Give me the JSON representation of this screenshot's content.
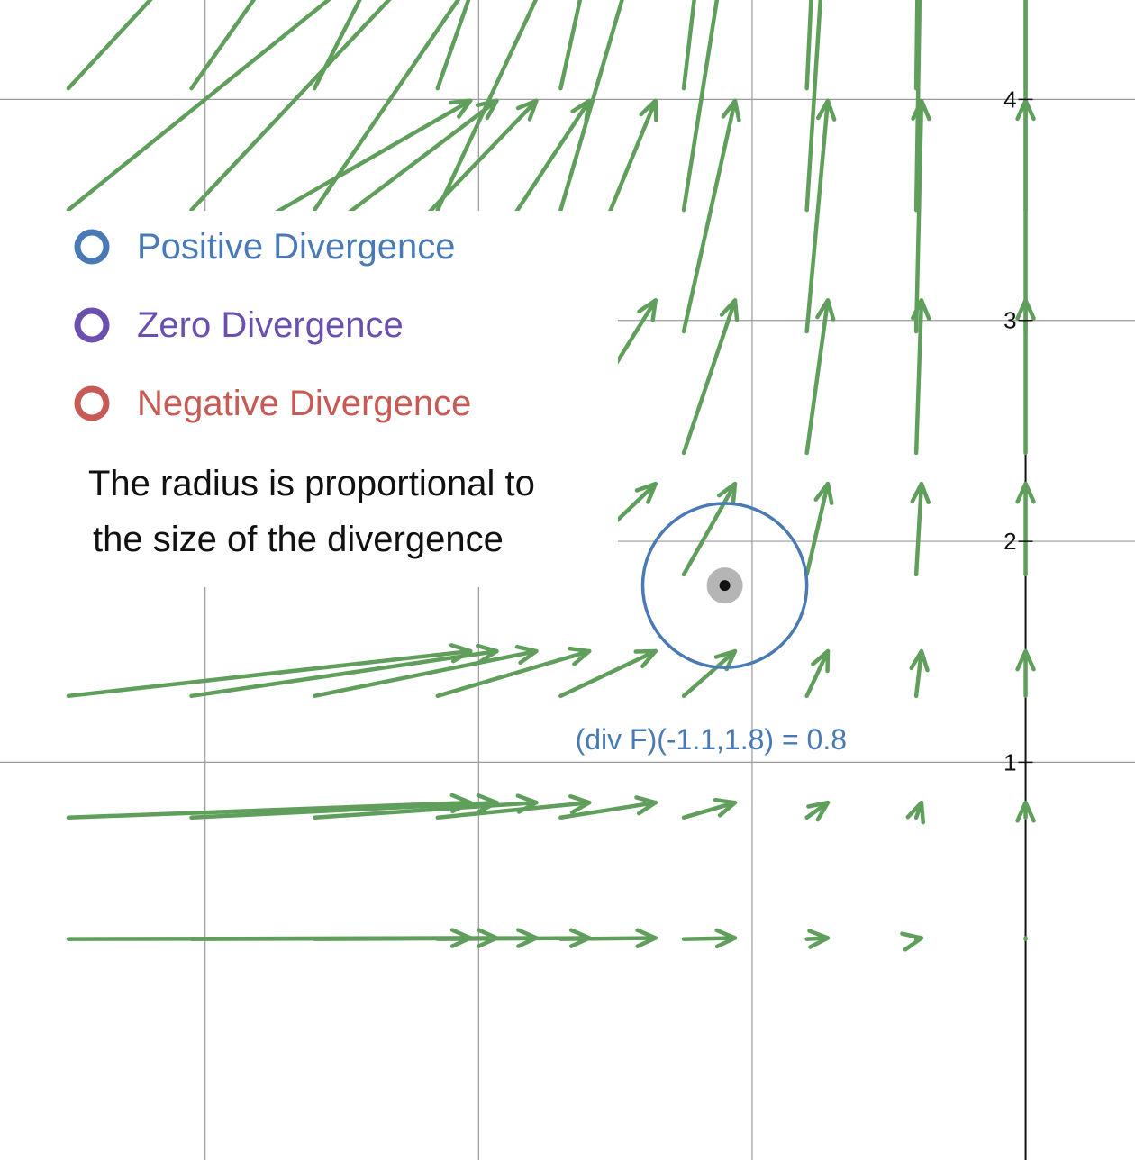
{
  "colors": {
    "arrow": "#5f9e5b",
    "grid": "#9a9a9a",
    "axis": "#111111",
    "positive": "#4a7ab5",
    "zero": "#6b4fae",
    "negative": "#c85a55",
    "point_halo": "#b5b5b5",
    "point": "#111111"
  },
  "legend": {
    "positive": "Positive Divergence",
    "zero": "Zero Divergence",
    "negative": "Negative Divergence",
    "note_line1": "The radius is proportional to",
    "note_line2": "the size of the divergence"
  },
  "chart_data": {
    "type": "vector-field",
    "x_range": [
      -3.75,
      0.4
    ],
    "y_range": [
      -0.8,
      4.45
    ],
    "y_ticks": [
      1,
      2,
      3,
      4
    ],
    "y_tick_labels": [
      "1",
      "2",
      "3",
      "4"
    ],
    "grid": true,
    "vector_field_color": "green",
    "selected_point": {
      "x": -1.1,
      "y": 1.8
    },
    "divergence_value": 0.8,
    "divergence_sign": "positive",
    "divergence_circle_radius": 0.8,
    "annotation": "(div F)(-1.1,1.8) = 0.8"
  }
}
